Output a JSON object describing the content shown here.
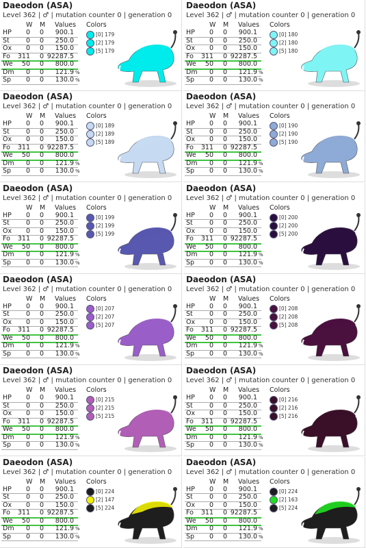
{
  "title": "Daeodon (ASA)",
  "subtitle": "Level 362 | ♂ | mutation counter 0 | generation 0",
  "headers": [
    "W",
    "M",
    "Values",
    "Colors"
  ],
  "stats": [
    {
      "name": "HP",
      "w": "0",
      "m": "0",
      "value": "900.1"
    },
    {
      "name": "St",
      "w": "0",
      "m": "0",
      "value": "250.0"
    },
    {
      "name": "Ox",
      "w": "0",
      "m": "0",
      "value": "150.0"
    },
    {
      "name": "Fo",
      "w": "311",
      "m": "0",
      "value": "92287.5"
    },
    {
      "name": "We",
      "w": "50",
      "m": "0",
      "value": "800.0"
    },
    {
      "name": "Dm",
      "w": "0",
      "m": "0",
      "value": "121.9",
      "unit": "%"
    },
    {
      "name": "Sp",
      "w": "0",
      "m": "0",
      "value": "130.0",
      "unit": "%"
    }
  ],
  "cards": [
    {
      "colors": [
        {
          "label": "[0] 179",
          "color": "#00ecec"
        },
        {
          "label": "[2] 179",
          "color": "#00ecec"
        },
        {
          "label": "[5] 179",
          "color": "#00ecec"
        }
      ]
    },
    {
      "colors": [
        {
          "label": "[0] 180",
          "color": "#7ff4f4"
        },
        {
          "label": "[2] 180",
          "color": "#7ff4f4"
        },
        {
          "label": "[5] 180",
          "color": "#7ff4f4"
        }
      ]
    },
    {
      "colors": [
        {
          "label": "[0] 189",
          "color": "#c6daf2"
        },
        {
          "label": "[2] 189",
          "color": "#c6daf2"
        },
        {
          "label": "[5] 189",
          "color": "#c6daf2"
        }
      ]
    },
    {
      "colors": [
        {
          "label": "[0] 190",
          "color": "#8eaad6"
        },
        {
          "label": "[2] 190",
          "color": "#8eaad6"
        },
        {
          "label": "[5] 190",
          "color": "#8eaad6"
        }
      ]
    },
    {
      "colors": [
        {
          "label": "[0] 199",
          "color": "#5858b0"
        },
        {
          "label": "[2] 199",
          "color": "#5858b0"
        },
        {
          "label": "[5] 199",
          "color": "#5858b0"
        }
      ]
    },
    {
      "colors": [
        {
          "label": "[0] 200",
          "color": "#2a0f3e"
        },
        {
          "label": "[2] 200",
          "color": "#2a0f3e"
        },
        {
          "label": "[5] 200",
          "color": "#2a0f3e"
        }
      ]
    },
    {
      "colors": [
        {
          "label": "[0] 207",
          "color": "#9a5ec8"
        },
        {
          "label": "[2] 207",
          "color": "#9a5ec8"
        },
        {
          "label": "[5] 207",
          "color": "#9a5ec8"
        }
      ]
    },
    {
      "colors": [
        {
          "label": "[0] 208",
          "color": "#4a103e"
        },
        {
          "label": "[2] 208",
          "color": "#4a103e"
        },
        {
          "label": "[5] 208",
          "color": "#4a103e"
        }
      ]
    },
    {
      "colors": [
        {
          "label": "[0] 215",
          "color": "#b05eb6"
        },
        {
          "label": "[2] 215",
          "color": "#b05eb6"
        },
        {
          "label": "[5] 215",
          "color": "#b05eb6"
        }
      ]
    },
    {
      "colors": [
        {
          "label": "[0] 216",
          "color": "#3a0f28"
        },
        {
          "label": "[2] 216",
          "color": "#3a0f28"
        },
        {
          "label": "[5] 216",
          "color": "#3a0f28"
        }
      ]
    },
    {
      "colors": [
        {
          "label": "[0] 224",
          "color": "#1e1e1e"
        },
        {
          "label": "[2] 147",
          "color": "#f0f000"
        },
        {
          "label": "[5] 224",
          "color": "#1e1e1e"
        }
      ]
    },
    {
      "colors": [
        {
          "label": "[0] 224",
          "color": "#1e1e1e"
        },
        {
          "label": "[2] 163",
          "color": "#20e020"
        },
        {
          "label": "[5] 224",
          "color": "#1e1e1e"
        }
      ]
    }
  ]
}
